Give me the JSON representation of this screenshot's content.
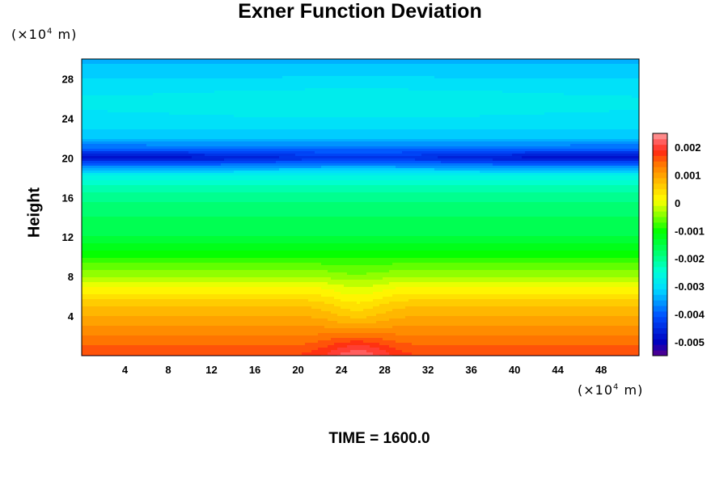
{
  "chart_data": {
    "type": "heatmap",
    "title": "Exner Function Deviation",
    "ylabel": "Height",
    "xlabel": "",
    "x_unit": "(×10",
    "x_unit_exp": "4",
    "x_unit_tail": " m)",
    "y_unit": "(×10",
    "y_unit_exp": "4",
    "y_unit_tail": " m)",
    "footer": "TIME = 1600.0",
    "xlim": [
      0,
      51.5
    ],
    "ylim": [
      0,
      30
    ],
    "x_ticks": [
      4,
      8,
      12,
      16,
      20,
      24,
      28,
      32,
      36,
      40,
      44,
      48
    ],
    "y_ticks": [
      4,
      8,
      12,
      16,
      20,
      24,
      28
    ],
    "colorbar": {
      "range": [
        -0.0055,
        0.0025
      ],
      "ticks": [
        {
          "value": 0.002,
          "label": "0.002"
        },
        {
          "value": 0.001,
          "label": "0.001"
        },
        {
          "value": 0,
          "label": "0"
        },
        {
          "value": -0.001,
          "label": "-0.001"
        },
        {
          "value": -0.002,
          "label": "-0.002"
        },
        {
          "value": -0.003,
          "label": "-0.003"
        },
        {
          "value": -0.004,
          "label": "-0.004"
        },
        {
          "value": -0.005,
          "label": "-0.005"
        }
      ]
    },
    "profile": {
      "height": [
        0,
        1,
        2,
        3,
        4,
        5,
        6,
        7,
        8,
        9,
        10,
        11,
        12,
        13,
        14,
        15,
        16,
        17,
        18,
        19,
        20,
        21,
        22,
        23,
        24,
        25,
        26,
        27,
        28,
        29,
        30
      ],
      "value": [
        0.0017,
        0.0015,
        0.0013,
        0.0011,
        0.0009,
        0.0007,
        0.0004,
        0.0001,
        -0.0003,
        -0.0006,
        -0.0009,
        -0.0012,
        -0.0015,
        -0.0016,
        -0.0017,
        -0.0018,
        -0.002,
        -0.0022,
        -0.0026,
        -0.0034,
        -0.0044,
        -0.0038,
        -0.0033,
        -0.0031,
        -0.003,
        -0.0029,
        -0.0029,
        -0.003,
        -0.0031,
        -0.0032,
        -0.0034
      ]
    },
    "perturbation": {
      "center_x": 25.5,
      "amplitude_near_surface": 0.0006,
      "trough_height": 5,
      "trough_amplitude": -0.0003
    }
  }
}
